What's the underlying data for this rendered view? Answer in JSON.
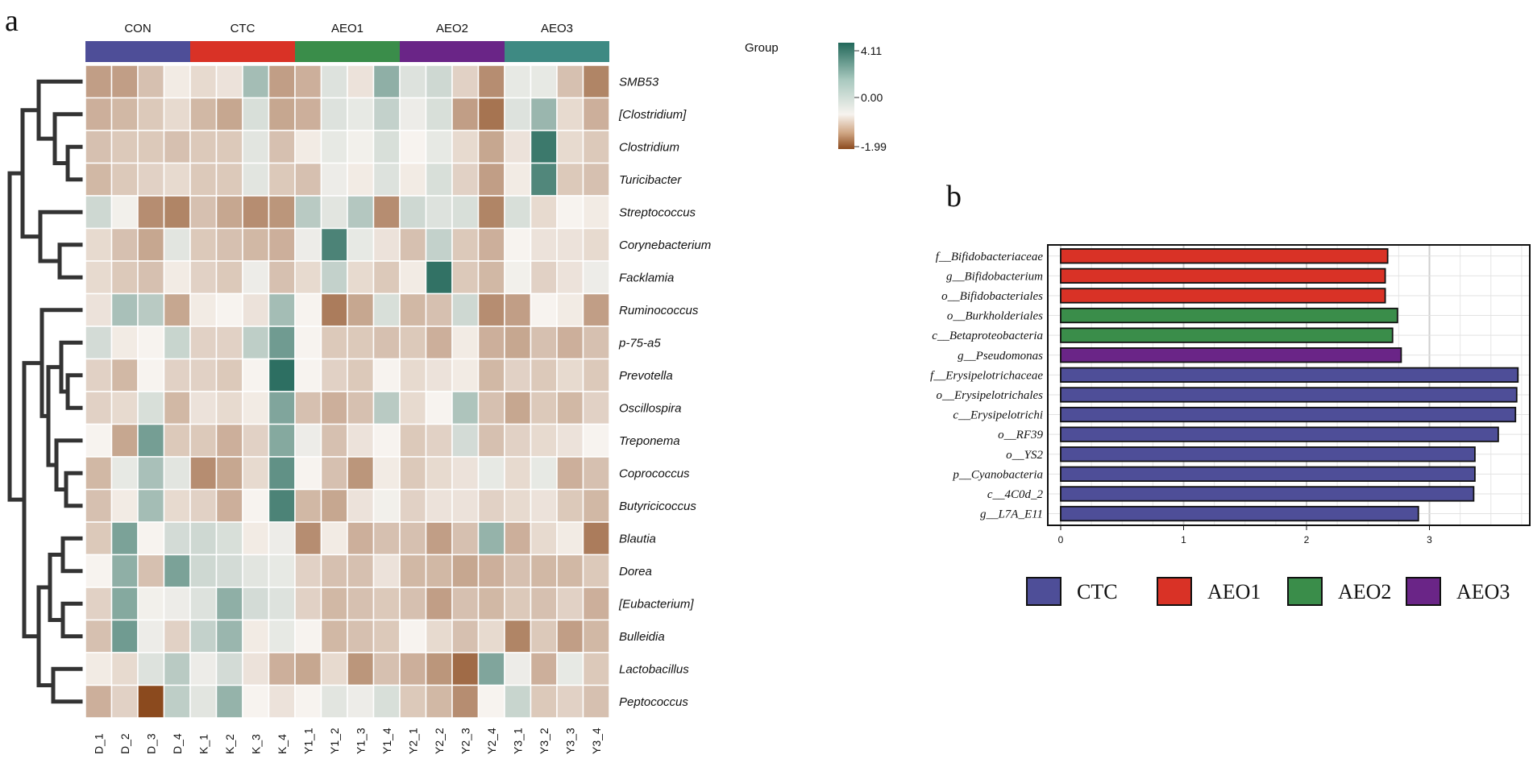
{
  "chart_data": [
    {
      "panel": "a",
      "type": "heatmap",
      "row_label_header": "Group",
      "groups": [
        {
          "name": "CON",
          "color": "#4E4E98"
        },
        {
          "name": "CTC",
          "color": "#D93226"
        },
        {
          "name": "AEO1",
          "color": "#3A8D4A"
        },
        {
          "name": "AEO2",
          "color": "#6A2587"
        },
        {
          "name": "AEO3",
          "color": "#3E8A83"
        }
      ],
      "columns": [
        "D_1",
        "D_2",
        "D_3",
        "D_4",
        "K_1",
        "K_2",
        "K_3",
        "K_4",
        "Y1_1",
        "Y1_2",
        "Y1_3",
        "Y1_4",
        "Y2_1",
        "Y2_2",
        "Y2_3",
        "Y2_4",
        "Y3_1",
        "Y3_2",
        "Y3_3",
        "Y3_4"
      ],
      "rows": [
        "SMB53",
        "[Clostridium]",
        "Clostridium",
        "Turicibacter",
        "Streptococcus",
        "Corynebacterium",
        "Facklamia",
        "Ruminococcus",
        "p-75-a5",
        "Prevotella",
        "Oscillospira",
        "Treponema",
        "Coprococcus",
        "Butyricicoccus",
        "Blautia",
        "Dorea",
        "[Eubacterium]",
        "Bulleidia",
        "Lactobacillus",
        "Peptococcus"
      ],
      "colorbar": {
        "min": -1.99,
        "mid": 0.0,
        "max": 4.11,
        "tick_labels": [
          "4.11",
          "0.00",
          "-1.99"
        ],
        "low_color": "#8B4A1E",
        "mid_color": "#F7F3EF",
        "high_color": "#22685A"
      },
      "values": [
        [
          -1.0,
          -1.0,
          -0.6,
          -0.1,
          -0.3,
          -0.2,
          1.6,
          -1.0,
          -0.8,
          0.5,
          -0.2,
          2.0,
          0.5,
          0.8,
          -0.4,
          -1.2,
          0.3,
          0.3,
          -0.6,
          -1.3
        ],
        [
          -0.8,
          -0.7,
          -0.5,
          -0.3,
          -0.7,
          -0.9,
          0.6,
          -0.9,
          -0.8,
          0.5,
          0.3,
          1.0,
          0.2,
          0.6,
          -1.0,
          -1.5,
          0.5,
          1.8,
          -0.3,
          -0.8
        ],
        [
          -0.6,
          -0.5,
          -0.5,
          -0.6,
          -0.5,
          -0.5,
          0.4,
          -0.6,
          -0.1,
          0.3,
          0.1,
          0.6,
          0.0,
          0.3,
          -0.3,
          -0.9,
          -0.2,
          3.6,
          -0.3,
          -0.5
        ],
        [
          -0.7,
          -0.5,
          -0.4,
          -0.3,
          -0.5,
          -0.5,
          0.4,
          -0.5,
          -0.6,
          0.2,
          -0.1,
          0.5,
          -0.1,
          0.6,
          -0.4,
          -1.0,
          -0.1,
          3.2,
          -0.5,
          -0.6
        ],
        [
          0.8,
          0.1,
          -1.2,
          -1.3,
          -0.6,
          -0.9,
          -1.2,
          -1.1,
          1.2,
          0.4,
          1.3,
          -1.2,
          0.8,
          0.5,
          0.6,
          -1.3,
          0.6,
          -0.3,
          0.0,
          -0.1
        ],
        [
          -0.3,
          -0.6,
          -0.9,
          0.4,
          -0.5,
          -0.6,
          -0.7,
          -0.8,
          0.2,
          3.3,
          0.3,
          -0.2,
          -0.6,
          1.0,
          -0.5,
          -0.8,
          0.0,
          -0.2,
          -0.2,
          -0.3
        ],
        [
          -0.3,
          -0.5,
          -0.6,
          -0.1,
          -0.4,
          -0.5,
          0.2,
          -0.6,
          -0.3,
          1.0,
          -0.3,
          -0.5,
          -0.1,
          3.8,
          -0.5,
          -0.7,
          0.1,
          -0.4,
          -0.2,
          0.2
        ],
        [
          -0.2,
          1.5,
          1.2,
          -0.9,
          -0.1,
          0.0,
          -0.2,
          1.6,
          0.0,
          -1.4,
          -0.9,
          0.6,
          -0.7,
          -0.6,
          0.8,
          -1.2,
          -1.0,
          0.0,
          -0.1,
          -1.0
        ],
        [
          0.7,
          -0.1,
          0.0,
          0.9,
          -0.4,
          -0.4,
          1.1,
          2.6,
          0.0,
          -0.5,
          -0.5,
          -0.6,
          -0.5,
          -0.8,
          -0.1,
          -0.8,
          -0.9,
          -0.6,
          -0.8,
          -0.6
        ],
        [
          -0.4,
          -0.7,
          0.0,
          -0.4,
          -0.4,
          -0.5,
          0.0,
          3.9,
          0.0,
          -0.4,
          -0.5,
          0.0,
          -0.3,
          -0.2,
          -0.1,
          -0.7,
          -0.4,
          -0.5,
          -0.3,
          -0.5
        ],
        [
          -0.4,
          -0.3,
          0.6,
          -0.7,
          -0.2,
          -0.3,
          -0.1,
          2.3,
          -0.6,
          -0.8,
          -0.6,
          1.2,
          -0.3,
          0.0,
          1.4,
          -0.6,
          -0.9,
          -0.5,
          -0.7,
          -0.4
        ],
        [
          0.0,
          -0.9,
          2.5,
          -0.5,
          -0.5,
          -0.8,
          -0.4,
          2.2,
          0.2,
          -0.6,
          -0.2,
          0.0,
          -0.5,
          -0.4,
          0.7,
          -0.6,
          -0.4,
          -0.3,
          -0.2,
          0.0
        ],
        [
          -0.7,
          0.3,
          1.5,
          0.4,
          -1.2,
          -0.9,
          -0.3,
          2.9,
          0.0,
          -0.6,
          -1.1,
          -0.1,
          -0.5,
          -0.3,
          -0.2,
          0.3,
          -0.3,
          0.3,
          -0.8,
          -0.6
        ],
        [
          -0.6,
          -0.1,
          1.6,
          -0.3,
          -0.4,
          -0.8,
          0.0,
          3.3,
          -0.7,
          -0.9,
          -0.2,
          0.1,
          -0.4,
          -0.2,
          -0.2,
          -0.4,
          -0.3,
          -0.2,
          -0.5,
          -0.7
        ],
        [
          -0.5,
          2.4,
          0.0,
          0.7,
          0.8,
          0.6,
          -0.1,
          0.2,
          -1.2,
          -0.1,
          -0.8,
          -0.6,
          -0.6,
          -1.0,
          -0.6,
          1.9,
          -0.8,
          -0.3,
          -0.1,
          -1.4
        ],
        [
          0.0,
          2.0,
          -0.6,
          2.4,
          0.8,
          0.7,
          0.4,
          0.3,
          -0.4,
          -0.6,
          -0.6,
          -0.2,
          -0.7,
          -0.7,
          -0.9,
          -0.8,
          -0.6,
          -0.7,
          -0.7,
          -0.5
        ],
        [
          -0.4,
          2.2,
          0.1,
          0.2,
          0.5,
          2.0,
          0.7,
          0.5,
          -0.4,
          -0.7,
          -0.6,
          -0.5,
          -0.6,
          -1.0,
          -0.6,
          -0.7,
          -0.5,
          -0.6,
          -0.4,
          -0.8
        ],
        [
          -0.6,
          2.6,
          0.2,
          -0.4,
          1.0,
          1.8,
          -0.1,
          0.3,
          0.0,
          -0.7,
          -0.6,
          -0.5,
          0.0,
          -0.3,
          -0.6,
          -0.3,
          -1.3,
          -0.5,
          -1.0,
          -0.7
        ],
        [
          -0.1,
          -0.3,
          0.5,
          1.2,
          0.2,
          0.7,
          -0.2,
          -0.8,
          -0.9,
          -0.3,
          -1.1,
          -0.6,
          -0.8,
          -1.1,
          -1.6,
          2.3,
          0.2,
          -0.8,
          0.3,
          -0.5
        ],
        [
          -0.8,
          -0.4,
          -1.99,
          1.1,
          0.4,
          1.9,
          0.0,
          -0.2,
          0.0,
          0.4,
          0.2,
          0.6,
          -0.5,
          -0.7,
          -1.2,
          0.0,
          0.9,
          -0.5,
          -0.4,
          -0.6
        ]
      ]
    },
    {
      "panel": "b",
      "type": "bar",
      "orientation": "horizontal",
      "categories": [
        "f__Bifidobacteriaceae",
        "g__Bifidobacterium",
        "o__Bifidobacteriales",
        "o__Burkholderiales",
        "c__Betaproteobacteria",
        "g__Pseudomonas",
        "f__Erysipelotrichaceae",
        "o__Erysipelotrichales",
        "c__Erysipelotrichi",
        "o__RF39",
        "o__YS2",
        "p__Cyanobacteria",
        "c__4C0d_2",
        "g__L7A_E11"
      ],
      "values": [
        2.66,
        2.64,
        2.64,
        2.74,
        2.7,
        2.77,
        3.72,
        3.71,
        3.7,
        3.56,
        3.37,
        3.37,
        3.36,
        2.91
      ],
      "groups_of_bars": [
        "AEO1",
        "AEO1",
        "AEO1",
        "AEO2",
        "AEO2",
        "AEO3",
        "CTC",
        "CTC",
        "CTC",
        "CTC",
        "CTC",
        "CTC",
        "CTC",
        "CTC"
      ],
      "legend": [
        {
          "name": "CTC",
          "color": "#4E4E98"
        },
        {
          "name": "AEO1",
          "color": "#D93226"
        },
        {
          "name": "AEO2",
          "color": "#3A8D4A"
        },
        {
          "name": "AEO3",
          "color": "#6A2587"
        }
      ],
      "xlim": [
        0,
        3.9
      ],
      "xticks": [
        0,
        1,
        2,
        3
      ],
      "tick_labels": [
        "0",
        "1",
        "2",
        "3"
      ],
      "legend_position": "bottom"
    }
  ],
  "labels": {
    "panel_a": "a",
    "panel_b": "b"
  }
}
